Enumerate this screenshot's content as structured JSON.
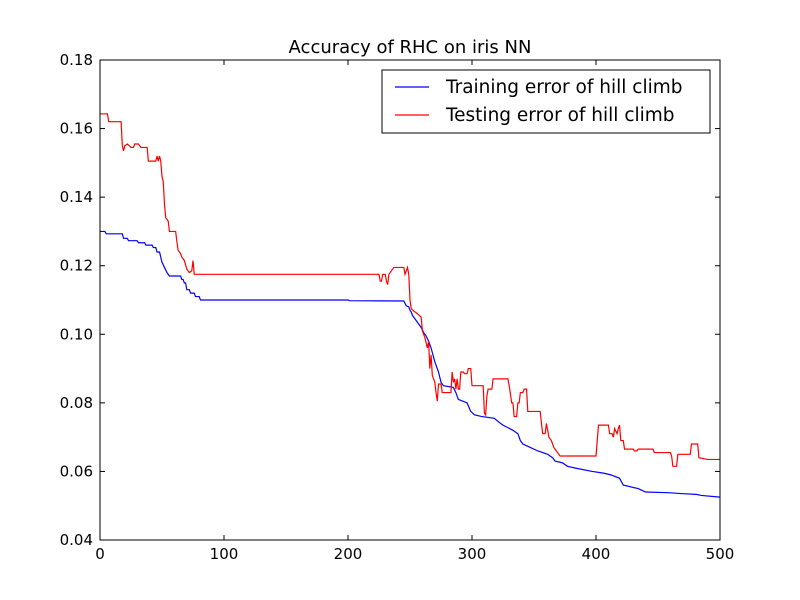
{
  "chart_data": {
    "type": "line",
    "title": "Accuracy of RHC on iris NN",
    "xlabel": "",
    "ylabel": "",
    "xlim": [
      0,
      500
    ],
    "ylim": [
      0.04,
      0.18
    ],
    "x_ticks": [
      0,
      100,
      200,
      300,
      400,
      500
    ],
    "x_tick_labels": [
      "0",
      "100",
      "200",
      "300",
      "400",
      "500"
    ],
    "y_ticks": [
      0.04,
      0.06,
      0.08,
      0.1,
      0.12,
      0.14,
      0.16,
      0.18
    ],
    "y_tick_labels": [
      "0.04",
      "0.06",
      "0.08",
      "0.10",
      "0.12",
      "0.14",
      "0.16",
      "0.18"
    ],
    "grid": false,
    "legend_position": "top-right",
    "series": [
      {
        "name": "Training error of hill climb",
        "color": "#0000ff",
        "points": [
          [
            0,
            0.13
          ],
          [
            4,
            0.13
          ],
          [
            5,
            0.1293
          ],
          [
            18,
            0.1293
          ],
          [
            19,
            0.128
          ],
          [
            22,
            0.128
          ],
          [
            23,
            0.1273
          ],
          [
            30,
            0.1273
          ],
          [
            31,
            0.1267
          ],
          [
            36,
            0.1267
          ],
          [
            37,
            0.126
          ],
          [
            42,
            0.126
          ],
          [
            43,
            0.1253
          ],
          [
            45,
            0.1253
          ],
          [
            46,
            0.124
          ],
          [
            48,
            0.124
          ],
          [
            49,
            0.1225
          ],
          [
            50,
            0.121
          ],
          [
            52,
            0.1195
          ],
          [
            54,
            0.118
          ],
          [
            56,
            0.117
          ],
          [
            65,
            0.117
          ],
          [
            66,
            0.116
          ],
          [
            67,
            0.116
          ],
          [
            68,
            0.115
          ],
          [
            69,
            0.115
          ],
          [
            70,
            0.113
          ],
          [
            72,
            0.113
          ],
          [
            73,
            0.112
          ],
          [
            76,
            0.112
          ],
          [
            77,
            0.111
          ],
          [
            80,
            0.111
          ],
          [
            81,
            0.11
          ],
          [
            200,
            0.11
          ],
          [
            201,
            0.1098
          ],
          [
            245,
            0.1097
          ],
          [
            247,
            0.1083
          ],
          [
            249,
            0.108
          ],
          [
            250,
            0.107
          ],
          [
            251,
            0.1065
          ],
          [
            252,
            0.1055
          ],
          [
            254,
            0.1045
          ],
          [
            257,
            0.103
          ],
          [
            259,
            0.102
          ],
          [
            261,
            0.1005
          ],
          [
            263,
            0.0995
          ],
          [
            265,
            0.098
          ],
          [
            267,
            0.096
          ],
          [
            270,
            0.092
          ],
          [
            273,
            0.089
          ],
          [
            275,
            0.086
          ],
          [
            277,
            0.085
          ],
          [
            285,
            0.0845
          ],
          [
            287,
            0.083
          ],
          [
            289,
            0.081
          ],
          [
            296,
            0.08
          ],
          [
            299,
            0.0775
          ],
          [
            302,
            0.0765
          ],
          [
            308,
            0.076
          ],
          [
            318,
            0.0755
          ],
          [
            323,
            0.074
          ],
          [
            325,
            0.0735
          ],
          [
            333,
            0.072
          ],
          [
            337,
            0.071
          ],
          [
            339,
            0.069
          ],
          [
            341,
            0.068
          ],
          [
            347,
            0.067
          ],
          [
            353,
            0.066
          ],
          [
            361,
            0.065
          ],
          [
            365,
            0.064
          ],
          [
            367,
            0.063
          ],
          [
            373,
            0.0625
          ],
          [
            377,
            0.0615
          ],
          [
            383,
            0.061
          ],
          [
            397,
            0.06
          ],
          [
            406,
            0.0595
          ],
          [
            412,
            0.059
          ],
          [
            419,
            0.058
          ],
          [
            422,
            0.056
          ],
          [
            434,
            0.055
          ],
          [
            437,
            0.0545
          ],
          [
            440,
            0.054
          ],
          [
            458,
            0.0538
          ],
          [
            470,
            0.0535
          ],
          [
            481,
            0.0533
          ],
          [
            485,
            0.053
          ],
          [
            500,
            0.0525
          ]
        ]
      },
      {
        "name": "Testing error of hill climb",
        "color": "#ff0000",
        "points": [
          [
            0,
            0.1643
          ],
          [
            6,
            0.1643
          ],
          [
            7,
            0.162
          ],
          [
            17,
            0.162
          ],
          [
            18,
            0.155
          ],
          [
            19,
            0.1535
          ],
          [
            20,
            0.155
          ],
          [
            22,
            0.1555
          ],
          [
            25,
            0.1545
          ],
          [
            27,
            0.1545
          ],
          [
            28,
            0.1555
          ],
          [
            31,
            0.1555
          ],
          [
            33,
            0.1545
          ],
          [
            38,
            0.1545
          ],
          [
            39,
            0.1505
          ],
          [
            45,
            0.1505
          ],
          [
            46,
            0.152
          ],
          [
            47,
            0.1505
          ],
          [
            48,
            0.152
          ],
          [
            49,
            0.1505
          ],
          [
            50,
            0.146
          ],
          [
            51,
            0.1445
          ],
          [
            52,
            0.138
          ],
          [
            53,
            0.134
          ],
          [
            55,
            0.133
          ],
          [
            56,
            0.13
          ],
          [
            61,
            0.13
          ],
          [
            62,
            0.127
          ],
          [
            63,
            0.1245
          ],
          [
            65,
            0.1235
          ],
          [
            66,
            0.1225
          ],
          [
            68,
            0.1215
          ],
          [
            70,
            0.119
          ],
          [
            72,
            0.118
          ],
          [
            74,
            0.1185
          ],
          [
            75,
            0.1215
          ],
          [
            76,
            0.1175
          ],
          [
            225,
            0.1175
          ],
          [
            226,
            0.1155
          ],
          [
            227,
            0.1155
          ],
          [
            228,
            0.1175
          ],
          [
            230,
            0.1175
          ],
          [
            231,
            0.1155
          ],
          [
            232,
            0.1145
          ],
          [
            233,
            0.1175
          ],
          [
            237,
            0.1195
          ],
          [
            245,
            0.1195
          ],
          [
            246,
            0.1175
          ],
          [
            248,
            0.1195
          ],
          [
            249,
            0.1175
          ],
          [
            250,
            0.11
          ],
          [
            251,
            0.1075
          ],
          [
            253,
            0.1068
          ],
          [
            256,
            0.106
          ],
          [
            259,
            0.105
          ],
          [
            260,
            0.101
          ],
          [
            262,
            0.099
          ],
          [
            264,
            0.096
          ],
          [
            265,
            0.098
          ],
          [
            266,
            0.09
          ],
          [
            267,
            0.094
          ],
          [
            268,
            0.088
          ],
          [
            270,
            0.086
          ],
          [
            271,
            0.083
          ],
          [
            272,
            0.0805
          ],
          [
            273,
            0.0855
          ],
          [
            275,
            0.0855
          ],
          [
            276,
            0.083
          ],
          [
            283,
            0.083
          ],
          [
            284,
            0.089
          ],
          [
            285,
            0.086
          ],
          [
            286,
            0.087
          ],
          [
            287,
            0.084
          ],
          [
            288,
            0.087
          ],
          [
            289,
            0.084
          ],
          [
            290,
            0.084
          ],
          [
            291,
            0.089
          ],
          [
            293,
            0.089
          ],
          [
            294,
            0.0885
          ],
          [
            296,
            0.0885
          ],
          [
            297,
            0.09
          ],
          [
            299,
            0.09
          ],
          [
            300,
            0.085
          ],
          [
            309,
            0.085
          ],
          [
            310,
            0.077
          ],
          [
            311,
            0.0765
          ],
          [
            312,
            0.082
          ],
          [
            313,
            0.084
          ],
          [
            316,
            0.084
          ],
          [
            317,
            0.087
          ],
          [
            329,
            0.087
          ],
          [
            330,
            0.085
          ],
          [
            332,
            0.08
          ],
          [
            333,
            0.08
          ],
          [
            334,
            0.076
          ],
          [
            336,
            0.076
          ],
          [
            337,
            0.08
          ],
          [
            338,
            0.08
          ],
          [
            339,
            0.083
          ],
          [
            341,
            0.083
          ],
          [
            342,
            0.084
          ],
          [
            344,
            0.084
          ],
          [
            345,
            0.0775
          ],
          [
            355,
            0.0775
          ],
          [
            356,
            0.074
          ],
          [
            357,
            0.071
          ],
          [
            359,
            0.071
          ],
          [
            360,
            0.074
          ],
          [
            361,
            0.072
          ],
          [
            362,
            0.07
          ],
          [
            364,
            0.069
          ],
          [
            365,
            0.068
          ],
          [
            366,
            0.067
          ],
          [
            368,
            0.066
          ],
          [
            370,
            0.065
          ],
          [
            371,
            0.0645
          ],
          [
            400,
            0.0645
          ],
          [
            401,
            0.069
          ],
          [
            402,
            0.0735
          ],
          [
            410,
            0.0735
          ],
          [
            411,
            0.071
          ],
          [
            413,
            0.071
          ],
          [
            414,
            0.07
          ],
          [
            415,
            0.0725
          ],
          [
            417,
            0.071
          ],
          [
            418,
            0.0725
          ],
          [
            419,
            0.0735
          ],
          [
            420,
            0.069
          ],
          [
            422,
            0.069
          ],
          [
            423,
            0.0665
          ],
          [
            430,
            0.0665
          ],
          [
            431,
            0.066
          ],
          [
            433,
            0.066
          ],
          [
            434,
            0.0665
          ],
          [
            446,
            0.0665
          ],
          [
            447,
            0.0655
          ],
          [
            460,
            0.0655
          ],
          [
            461,
            0.0645
          ],
          [
            462,
            0.0615
          ],
          [
            465,
            0.0615
          ],
          [
            466,
            0.065
          ],
          [
            476,
            0.065
          ],
          [
            477,
            0.068
          ],
          [
            482,
            0.068
          ],
          [
            483,
            0.064
          ],
          [
            490,
            0.0635
          ],
          [
            500,
            0.0635
          ]
        ]
      }
    ]
  }
}
